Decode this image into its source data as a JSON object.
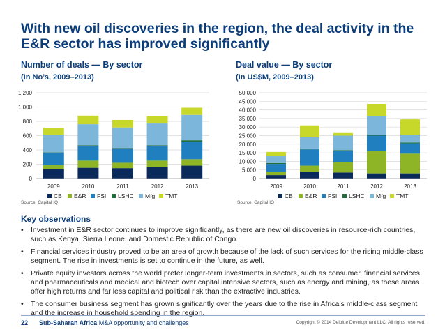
{
  "title": "With new oil discoveries in the region, the deal activity in the E&R sector has improved significantly",
  "colors": {
    "CB": "#0b2a5c",
    "E&R": "#8db526",
    "FSI": "#1f7fbf",
    "LSHC": "#1d6e3a",
    "Mfg": "#7db6db",
    "TMT": "#c8d82a"
  },
  "chart_data": [
    {
      "type": "bar",
      "stacked": true,
      "title": "Number of deals — By sector",
      "subtitle": "(In No’s, 2009–2013)",
      "categories": [
        "2009",
        "2010",
        "2011",
        "2012",
        "2013"
      ],
      "ylim": [
        0,
        1200
      ],
      "yticks": [
        0,
        200,
        400,
        600,
        800,
        1000,
        1200
      ],
      "ytick_labels": [
        "0",
        "200",
        "400",
        "600",
        "800",
        "1,000",
        "1,200"
      ],
      "series": [
        {
          "name": "CB",
          "values": [
            130,
            150,
            145,
            160,
            180
          ]
        },
        {
          "name": "E&R",
          "values": [
            55,
            100,
            75,
            90,
            90
          ]
        },
        {
          "name": "FSI",
          "values": [
            170,
            200,
            190,
            200,
            245
          ]
        },
        {
          "name": "LSHC",
          "values": [
            10,
            15,
            15,
            15,
            20
          ]
        },
        {
          "name": "Mfg",
          "values": [
            250,
            295,
            290,
            305,
            355
          ]
        },
        {
          "name": "TMT",
          "values": [
            95,
            120,
            105,
            105,
            100
          ]
        }
      ],
      "source": "Source: Capital IQ"
    },
    {
      "type": "bar",
      "stacked": true,
      "title": "Deal value — By sector",
      "subtitle": "(In US$M, 2009–2013)",
      "categories": [
        "2009",
        "2010",
        "2011",
        "2012",
        "2013"
      ],
      "ylim": [
        0,
        50000
      ],
      "yticks": [
        0,
        5000,
        10000,
        15000,
        20000,
        25000,
        30000,
        35000,
        40000,
        45000,
        50000
      ],
      "ytick_labels": [
        "0",
        "5,000",
        "10,000",
        "15,000",
        "20,000",
        "25,000",
        "30,000",
        "35,000",
        "40,000",
        "45,000",
        "50,000"
      ],
      "series": [
        {
          "name": "CB",
          "values": [
            2000,
            4000,
            3500,
            3000,
            3000
          ]
        },
        {
          "name": "E&R",
          "values": [
            2000,
            3500,
            6000,
            13000,
            11500
          ]
        },
        {
          "name": "FSI",
          "values": [
            4500,
            9500,
            6500,
            9000,
            6000
          ]
        },
        {
          "name": "LSHC",
          "values": [
            500,
            500,
            500,
            500,
            500
          ]
        },
        {
          "name": "Mfg",
          "values": [
            4000,
            6500,
            8500,
            11000,
            4500
          ]
        },
        {
          "name": "TMT",
          "values": [
            2500,
            7000,
            1500,
            7000,
            9000
          ]
        }
      ],
      "source": "Source: Capital IQ"
    }
  ],
  "observations": {
    "title": "Key observations",
    "items": [
      "Investment in E&R sector continues to improve significantly, as there are new oil discoveries in resource-rich countries, such as Kenya, Sierra Leone, and Domestic Republic of Congo.",
      "Financial services industry proved to be an area of growth because of the lack of such services for the rising middle-class segment. The rise in investments is set to continue in the future, as well.",
      "Private equity investors across the world prefer longer-term investments in sectors, such as consumer, financial services and pharmaceuticals and medical and biotech over capital intensive sectors, such as energy and mining, as these areas offer high returns and far less capital and political risk than the extractive industries.",
      "The consumer business segment has grown significantly over the years due to the rise in Africa’s middle-class segment and the increase in household spending in the region."
    ]
  },
  "footer": {
    "page": "22",
    "title_bold": "Sub-Saharan Africa",
    "title_rest": " M&A opportunity and challenges",
    "copyright": "Copyright © 2014 Deloitte Development LLC. All rights reserved."
  }
}
